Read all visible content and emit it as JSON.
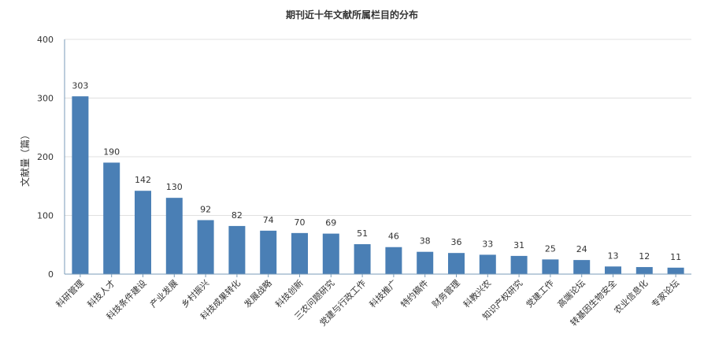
{
  "chart_data": {
    "type": "bar",
    "title": "期刊近十年文献所属栏目的分布",
    "xlabel": "",
    "ylabel": "文献量（篇）",
    "ylim": [
      0,
      400
    ],
    "yticks": [
      0,
      100,
      200,
      300,
      400
    ],
    "grid": true,
    "categories": [
      "科研管理",
      "科技人才",
      "科技条件建设",
      "产业发展",
      "乡村振兴",
      "科技成果转化",
      "发展战略",
      "科技创新",
      "三农问题研究",
      "党建与行政工作",
      "科技推广",
      "特约稿件",
      "财务管理",
      "科教兴农",
      "知识产权研究",
      "党建工作",
      "高端论坛",
      "转基因生物安全",
      "农业信息化",
      "专家论坛"
    ],
    "values": [
      303,
      190,
      142,
      130,
      92,
      82,
      74,
      70,
      69,
      51,
      46,
      38,
      36,
      33,
      31,
      25,
      24,
      13,
      12,
      11
    ],
    "colors": {
      "bar": "#4a7fb5",
      "grid": "#e0e0e0",
      "axis": "#7a9bb8"
    }
  }
}
